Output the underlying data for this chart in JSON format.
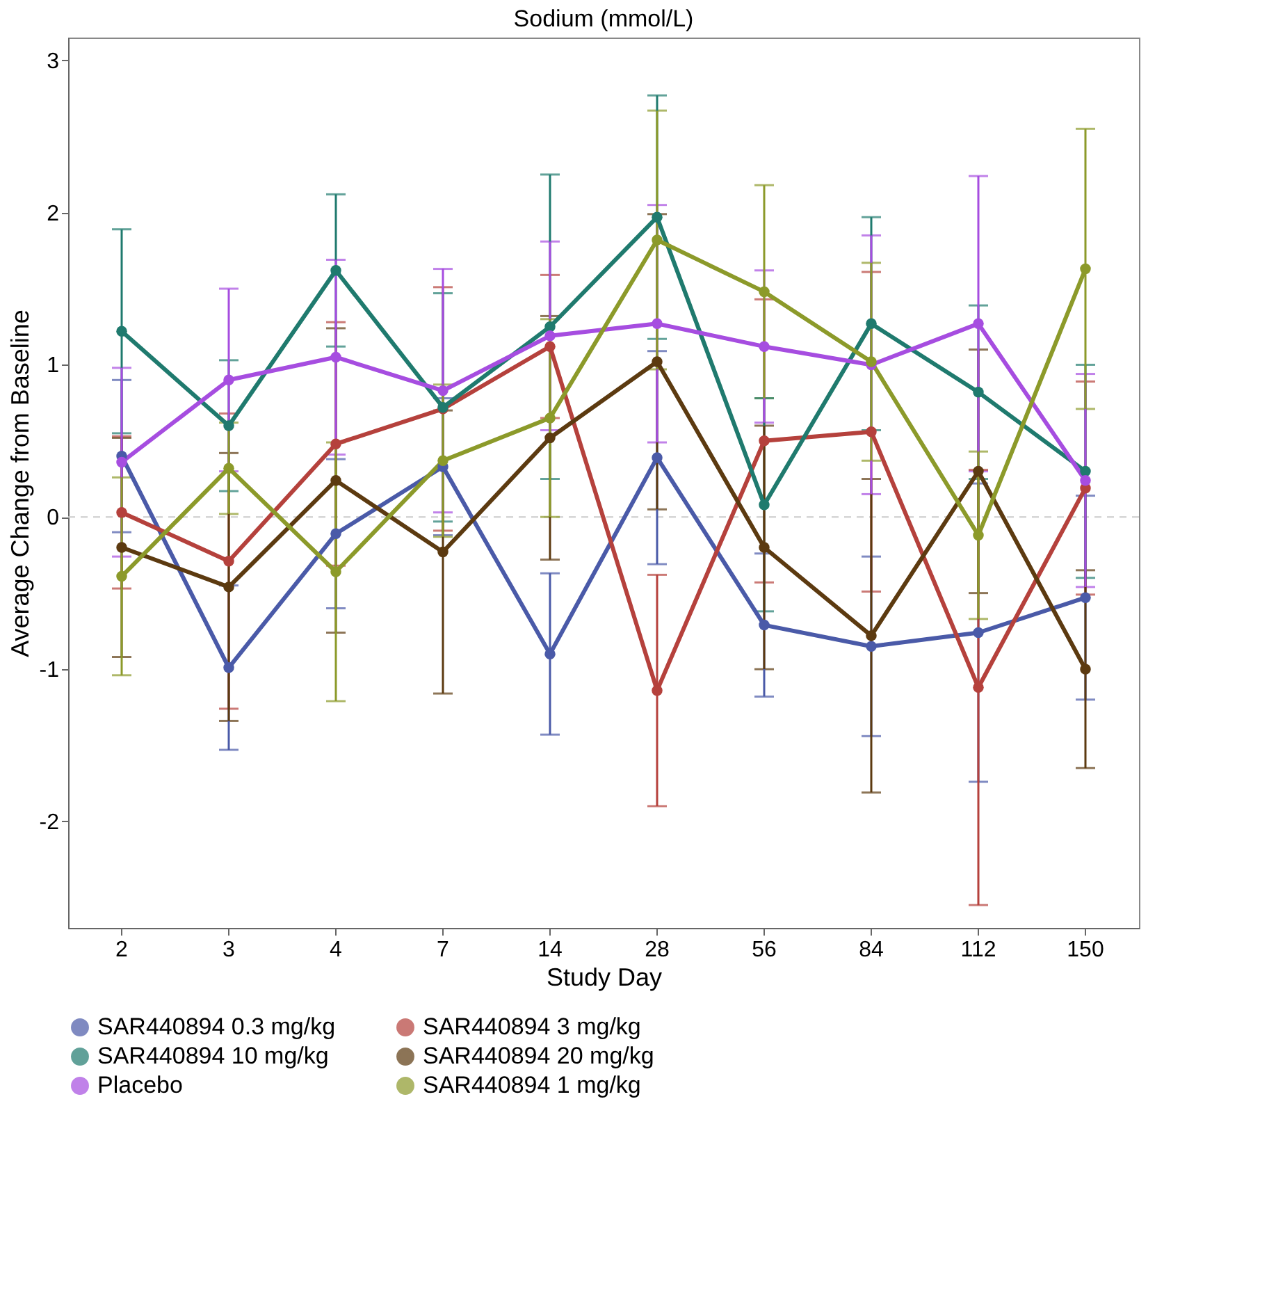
{
  "chart_data": {
    "type": "line",
    "title": "Sodium (mmol/L)",
    "xlabel": "Study Day",
    "ylabel": "Average Change from Baseline",
    "categories": [
      "2",
      "3",
      "4",
      "7",
      "14",
      "28",
      "56",
      "84",
      "112",
      "150"
    ],
    "ylim": [
      -2.7,
      3.15
    ],
    "yticks": [
      -2,
      -1,
      0,
      1,
      2,
      3
    ],
    "grid": false,
    "legend": "bottom",
    "marker": "circle",
    "line_style": "solid",
    "ref_lines": [
      {
        "axis": "y",
        "value": 0,
        "label": null,
        "color": "#cccccc",
        "line_style": "dashed"
      }
    ],
    "series": [
      {
        "name": "SAR440894 0.3 mg/kg",
        "color": "#4a5aa8",
        "values": [
          0.4,
          -0.99,
          -0.11,
          0.33,
          -0.9,
          0.39,
          -0.71,
          -0.85,
          -0.76,
          -0.53
        ],
        "errors": [
          0.5,
          0.54,
          0.49,
          0.45,
          0.53,
          0.7,
          0.47,
          0.59,
          0.98,
          0.67
        ]
      },
      {
        "name": "SAR440894 3 mg/kg",
        "color": "#b5413c",
        "values": [
          0.03,
          -0.29,
          0.48,
          0.71,
          1.12,
          -1.14,
          0.5,
          0.56,
          -1.12,
          0.19
        ],
        "errors": [
          0.5,
          0.97,
          0.8,
          0.8,
          0.47,
          0.76,
          0.93,
          1.05,
          1.43,
          0.7
        ]
      },
      {
        "name": "SAR440894 10 mg/kg",
        "color": "#1f7a6e",
        "values": [
          1.22,
          0.6,
          1.62,
          0.72,
          1.25,
          1.97,
          0.08,
          1.27,
          0.82,
          0.3
        ],
        "errors": [
          0.67,
          0.43,
          0.5,
          0.75,
          1.0,
          0.8,
          0.7,
          0.7,
          0.57,
          0.7
        ]
      },
      {
        "name": "SAR440894 20 mg/kg",
        "color": "#5c3a10",
        "values": [
          -0.2,
          -0.46,
          0.24,
          -0.23,
          0.52,
          1.02,
          -0.2,
          -0.78,
          0.3,
          -1.0
        ],
        "errors": [
          0.72,
          0.88,
          1.0,
          0.93,
          0.8,
          0.97,
          0.8,
          1.03,
          0.8,
          0.65
        ]
      },
      {
        "name": "Placebo",
        "color": "#a64de0",
        "values": [
          0.36,
          0.9,
          1.05,
          0.83,
          1.19,
          1.27,
          1.12,
          1.0,
          1.27,
          0.24
        ],
        "errors": [
          0.62,
          0.6,
          0.64,
          0.8,
          0.62,
          0.78,
          0.5,
          0.85,
          0.97,
          0.7
        ]
      },
      {
        "name": "SAR440894 1 mg/kg",
        "color": "#8c9a2a",
        "values": [
          -0.39,
          0.32,
          -0.36,
          0.37,
          0.65,
          1.82,
          1.48,
          1.02,
          -0.12,
          1.63
        ],
        "errors": [
          0.65,
          0.3,
          0.85,
          0.5,
          0.65,
          0.85,
          0.7,
          0.65,
          0.55,
          0.92
        ]
      }
    ]
  }
}
